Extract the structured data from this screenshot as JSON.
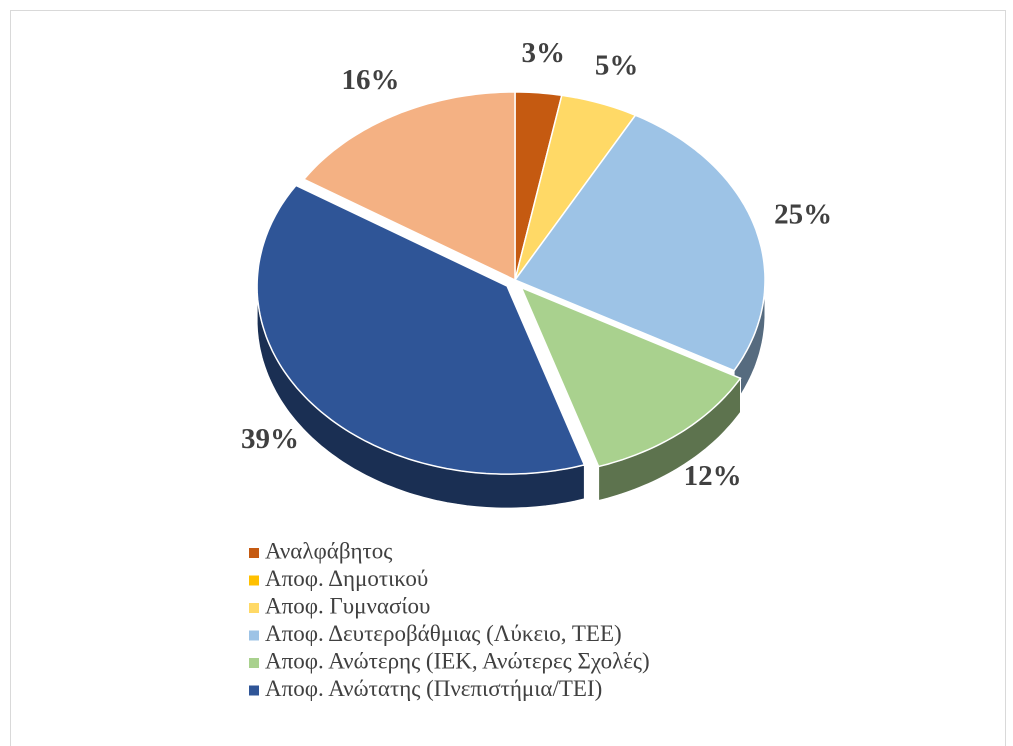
{
  "chart_data": {
    "type": "pie",
    "categories": [
      "Αναλφάβητος",
      "Αποφ. Δημοτικού",
      "Αποφ. Γυμνασίου",
      "Αποφ. Δευτεροβάθμιας (Λύκειο, ΤΕΕ)",
      "Αποφ. Ανώτερης (ΙΕΚ, Ανώτερες Σχολές)",
      "Αποφ. Ανώτατης (Πνεπιστήμια/ΤΕΙ)",
      null
    ],
    "values": [
      3,
      0,
      5,
      25,
      12,
      39,
      16
    ],
    "value_labels": [
      "3%",
      null,
      "5%",
      "25%",
      "12%",
      "39%",
      "16%"
    ],
    "colors": [
      "#c55a11",
      "#ffc000",
      "#ffd966",
      "#9dc3e6",
      "#a9d18e",
      "#2f5597",
      "#f4b183"
    ],
    "exploded": [
      false,
      false,
      false,
      false,
      true,
      true,
      false
    ],
    "legend": "bottom"
  }
}
